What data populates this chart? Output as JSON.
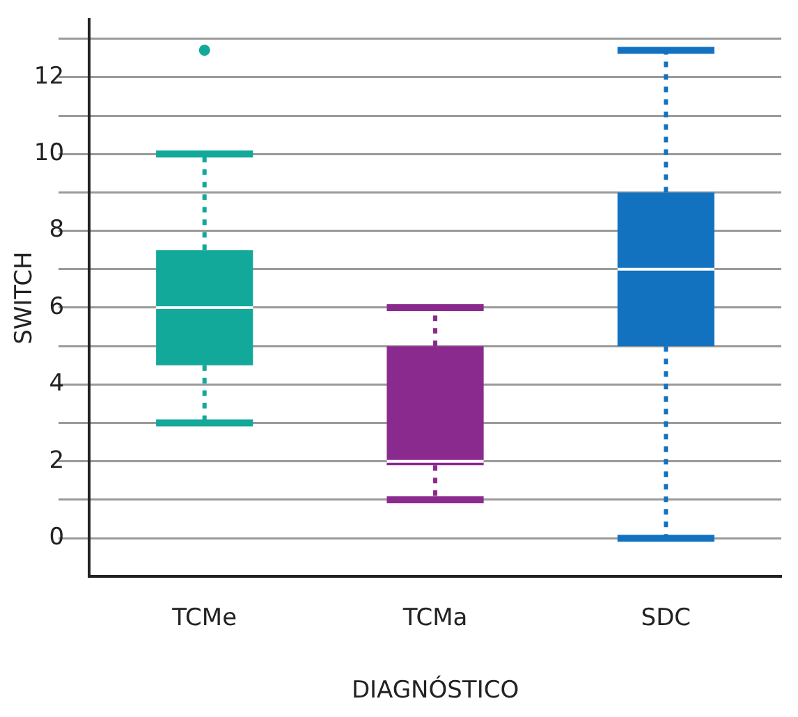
{
  "chart_data": {
    "type": "box",
    "xlabel": "DIAGNÓSTICO",
    "ylabel": "SWITCH",
    "categories": [
      "TCMe",
      "TCMa",
      "SDC"
    ],
    "series": [
      {
        "colors": [
          "#12a89a",
          "#8b2a8e",
          "#1372bf"
        ],
        "boxes": [
          {
            "low": 3,
            "q1": 4.5,
            "median": 6,
            "q3": 7.5,
            "high": 10,
            "outliers": [
              12.7
            ]
          },
          {
            "low": 1,
            "q1": 1.9,
            "median": 2,
            "q3": 5,
            "high": 6
          },
          {
            "low": 0,
            "q1": 5,
            "median": 7,
            "q3": 9,
            "high": 12.7
          }
        ]
      }
    ],
    "ylim": [
      -1,
      13.5
    ],
    "yticks": [
      0,
      {
        "value": 1,
        "label": null
      },
      2,
      {
        "value": 3,
        "label": null
      },
      4,
      {
        "value": 5,
        "label": null
      },
      6,
      {
        "value": 7,
        "label": null
      },
      8,
      {
        "value": 9,
        "label": null
      },
      10,
      {
        "value": 11,
        "label": null
      },
      12,
      {
        "value": 13,
        "label": null
      }
    ],
    "grid": "y",
    "legend": false,
    "line_style": "dotted",
    "marker": "circle"
  }
}
